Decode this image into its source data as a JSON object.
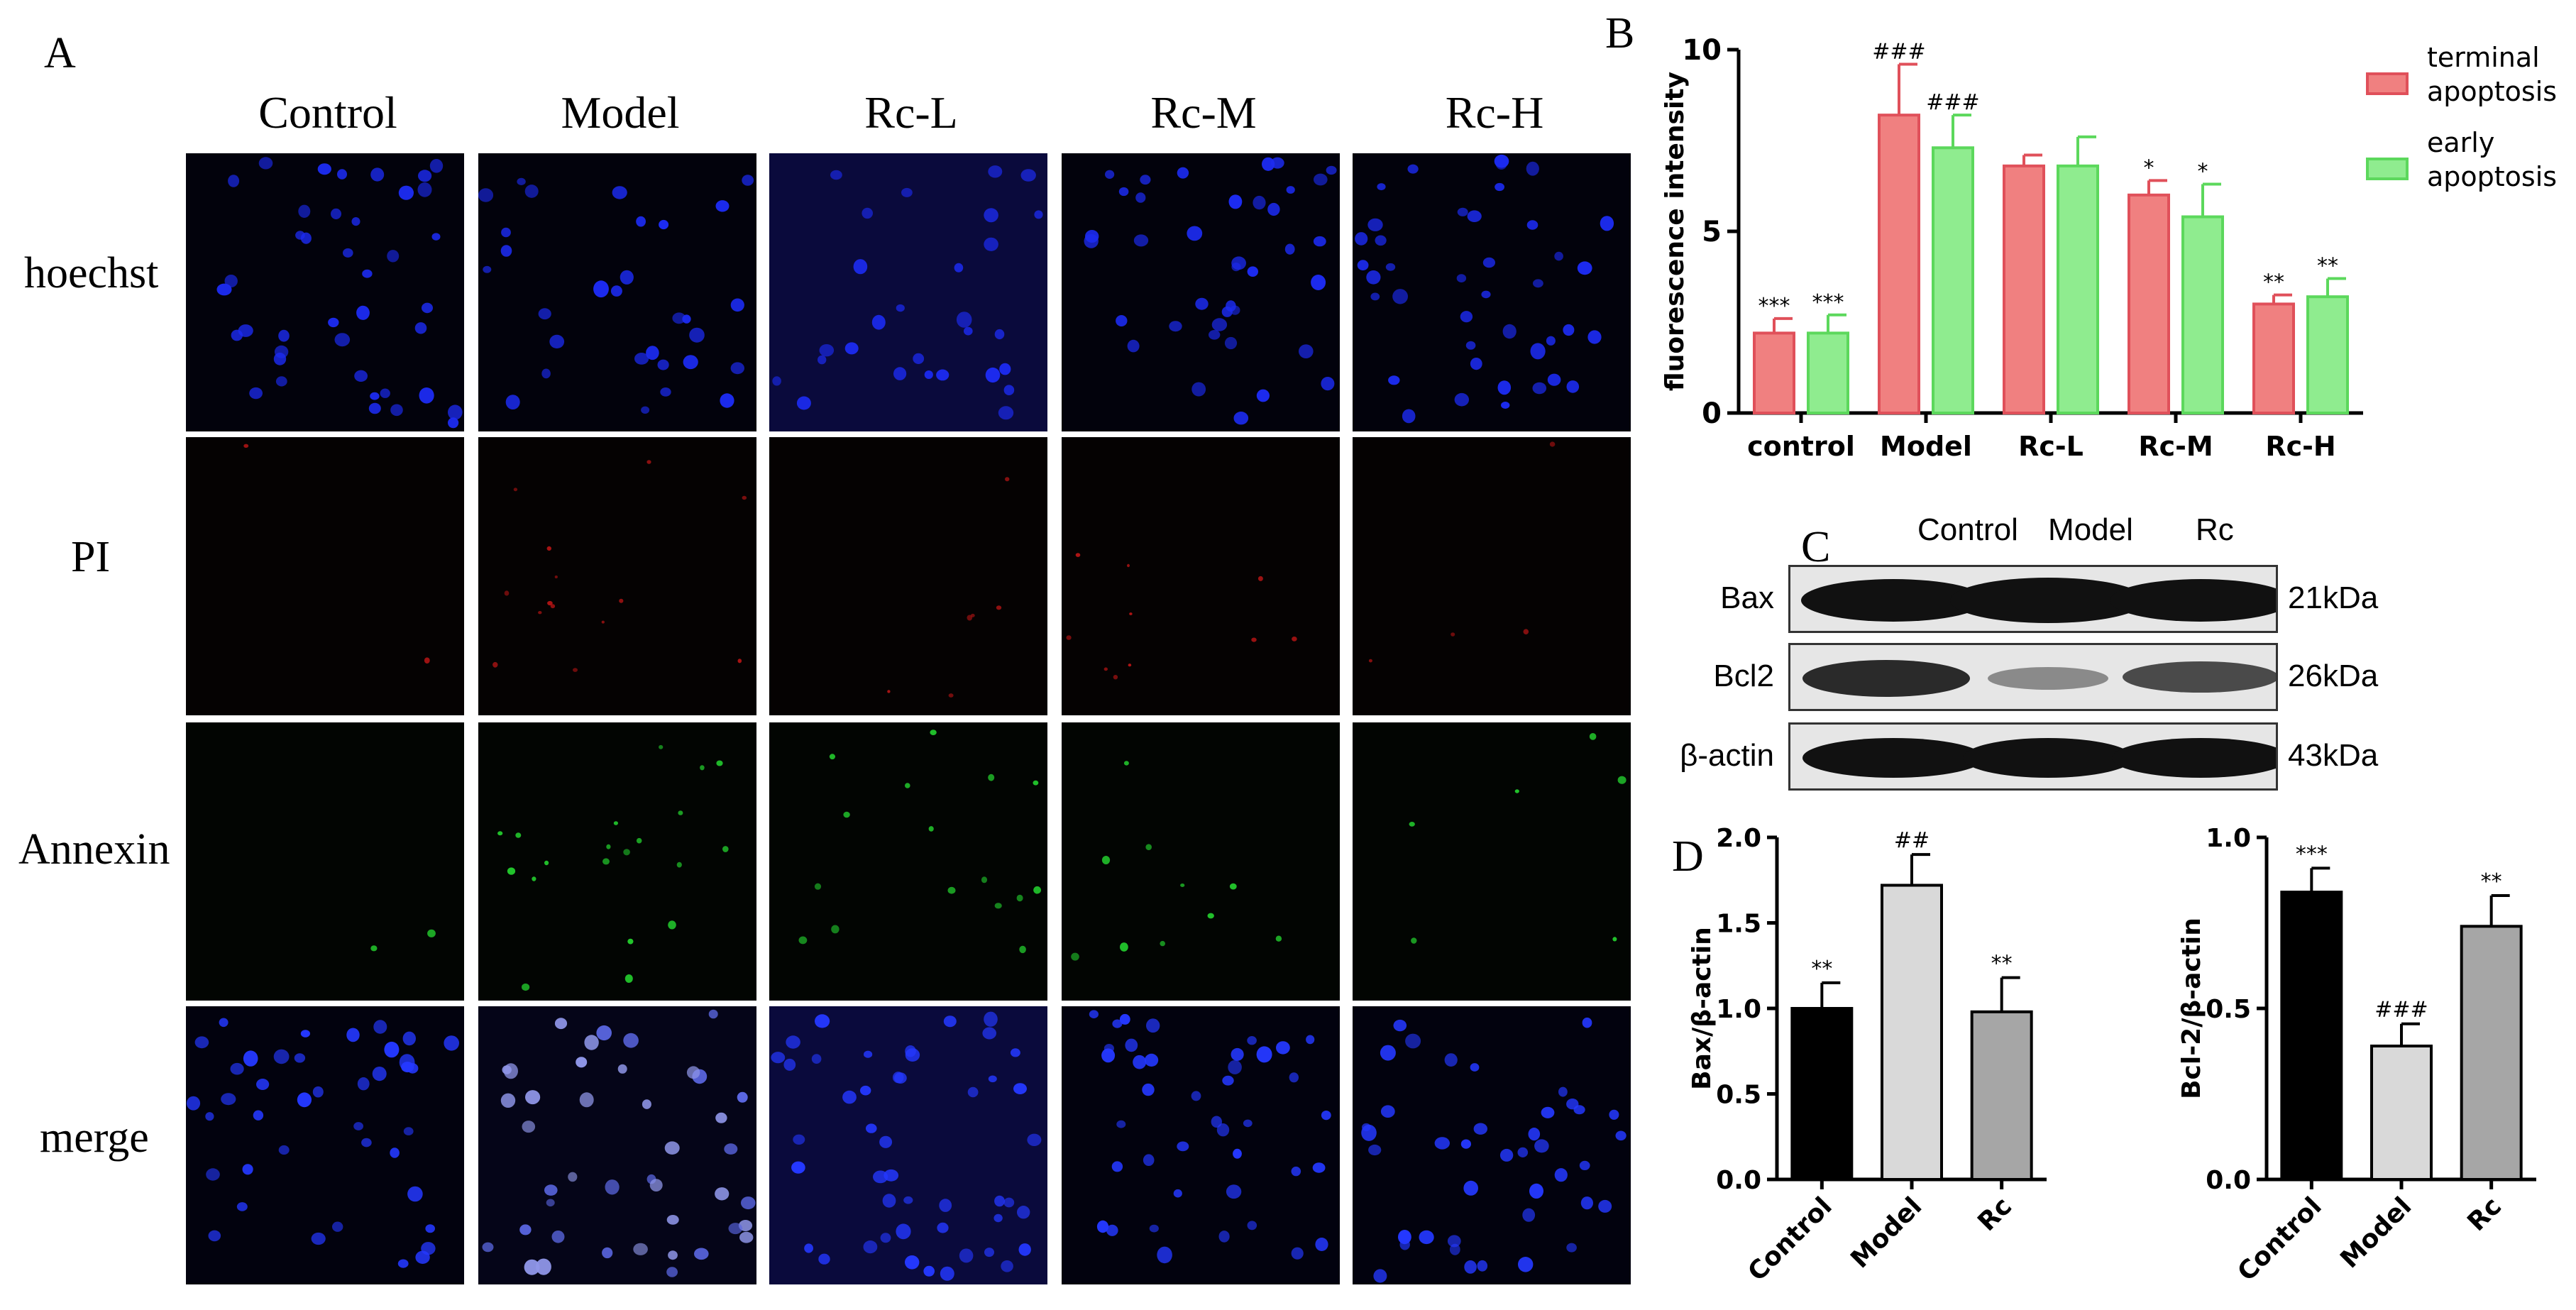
{
  "panel_letters": {
    "a": "A",
    "b": "B",
    "c": "C",
    "d": "D"
  },
  "panel_a": {
    "columns": [
      "Control",
      "Model",
      "Rc-L",
      "Rc-M",
      "Rc-H"
    ],
    "rows": [
      "hoechst",
      "PI",
      "Annexin",
      "merge"
    ]
  },
  "panel_c": {
    "lanes": [
      "Control",
      "Model",
      "Rc"
    ],
    "bands": [
      {
        "label": "Bax",
        "kda": "21kDa"
      },
      {
        "label": "Bcl2",
        "kda": "26kDa"
      },
      {
        "label": "β-actin",
        "kda": "43kDa"
      }
    ]
  },
  "chart_data": [
    {
      "type": "bar",
      "panel": "B",
      "ylabel": "fluorescence intensity",
      "ylim": [
        0,
        10
      ],
      "yticks": [
        0,
        5,
        10
      ],
      "categories": [
        "control",
        "Model",
        "Rc-L",
        "Rc-M",
        "Rc-H"
      ],
      "legend_position": "right",
      "series": [
        {
          "name": "terminal apoptosis",
          "color": "#f08080",
          "values": [
            2.2,
            8.2,
            6.8,
            6.0,
            3.0
          ],
          "errors": [
            0.4,
            1.4,
            0.3,
            0.4,
            0.25
          ],
          "annotations": [
            "***",
            "###",
            "",
            "*",
            "**"
          ]
        },
        {
          "name": "early apoptosis",
          "color": "#8fec8f",
          "values": [
            2.2,
            7.3,
            6.8,
            5.4,
            3.2
          ],
          "errors": [
            0.5,
            0.9,
            0.8,
            0.9,
            0.5
          ],
          "annotations": [
            "***",
            "###",
            "",
            "*",
            "**"
          ]
        }
      ]
    },
    {
      "type": "bar",
      "panel": "D-left",
      "ylabel": "Bax/β-actin",
      "ylim": [
        0,
        2.0
      ],
      "yticks": [
        "0.0",
        "0.5",
        "1.0",
        "1.5",
        "2.0"
      ],
      "categories": [
        "Control",
        "Model",
        "Rc"
      ],
      "values": [
        1.0,
        1.72,
        0.98
      ],
      "errors": [
        0.15,
        0.18,
        0.2
      ],
      "annotations": [
        "**",
        "##",
        "**"
      ],
      "colors": [
        "#000000",
        "#d9d9d9",
        "#a6a6a6"
      ]
    },
    {
      "type": "bar",
      "panel": "D-right",
      "ylabel": "Bcl-2/β-actin",
      "ylim": [
        0,
        1.0
      ],
      "yticks": [
        "0.0",
        "0.5",
        "1.0"
      ],
      "categories": [
        "Control",
        "Model",
        "Rc"
      ],
      "values": [
        0.84,
        0.39,
        0.74
      ],
      "errors": [
        0.07,
        0.065,
        0.09
      ],
      "annotations": [
        "***",
        "###",
        "**"
      ],
      "colors": [
        "#000000",
        "#d9d9d9",
        "#a6a6a6"
      ]
    }
  ]
}
